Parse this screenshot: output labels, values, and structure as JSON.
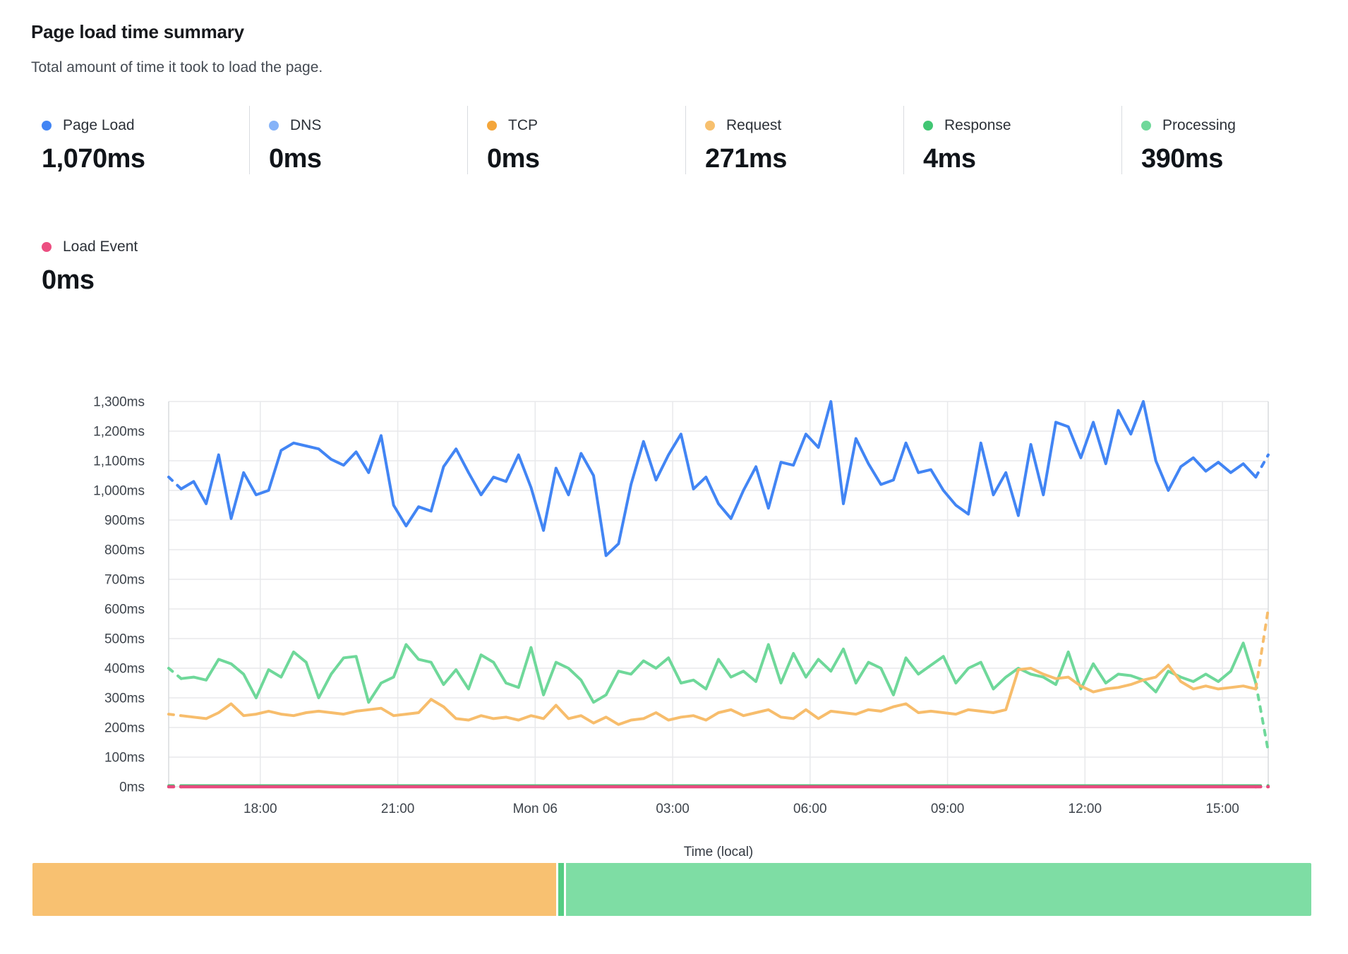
{
  "header": {
    "title": "Page load time summary",
    "subtitle": "Total amount of time it took to load the page."
  },
  "metrics": [
    {
      "id": "page_load",
      "label": "Page Load",
      "value": "1,070ms",
      "color": "#4285f4"
    },
    {
      "id": "dns",
      "label": "DNS",
      "value": "0ms",
      "color": "#86b3f8"
    },
    {
      "id": "tcp",
      "label": "TCP",
      "value": "0ms",
      "color": "#f4a63b"
    },
    {
      "id": "request",
      "label": "Request",
      "value": "271ms",
      "color": "#f7c06e"
    },
    {
      "id": "response",
      "label": "Response",
      "value": "4ms",
      "color": "#41c673"
    },
    {
      "id": "processing",
      "label": "Processing",
      "value": "390ms",
      "color": "#6fd89a"
    }
  ],
  "metrics_secondary": [
    {
      "id": "load_event",
      "label": "Load Event",
      "value": "0ms",
      "color": "#ec4f81"
    }
  ],
  "chart_data": {
    "type": "line",
    "title": "Page load time summary",
    "xlabel": "Time (local)",
    "ylabel": "",
    "ylim": [
      0,
      1300
    ],
    "y_tick_step": 100,
    "y_tick_suffix": "ms",
    "y_tick_labels": [
      "0ms",
      "100ms",
      "200ms",
      "300ms",
      "400ms",
      "500ms",
      "600ms",
      "700ms",
      "800ms",
      "900ms",
      "1,000ms",
      "1,100ms",
      "1,200ms",
      "1,300ms"
    ],
    "x_range_hours": [
      16,
      40
    ],
    "x_ticks": [
      {
        "label": "18:00",
        "hour": 18
      },
      {
        "label": "21:00",
        "hour": 21
      },
      {
        "label": "Mon 06",
        "hour": 24
      },
      {
        "label": "03:00",
        "hour": 27
      },
      {
        "label": "06:00",
        "hour": 30
      },
      {
        "label": "09:00",
        "hour": 33
      },
      {
        "label": "12:00",
        "hour": 36
      },
      {
        "label": "15:00",
        "hour": 39
      }
    ],
    "points_count": 89,
    "grid": true,
    "legend_position": "top",
    "edge_segments": "dashed",
    "series": [
      {
        "name": "DNS",
        "color": "#86b3f8",
        "flat_value": 0
      },
      {
        "name": "TCP",
        "color": "#f4a63b",
        "flat_value": 0
      },
      {
        "name": "Response",
        "color": "#41c673",
        "flat_value": 4
      },
      {
        "name": "Processing",
        "color": "#6fd89a",
        "values": [
          400,
          365,
          370,
          360,
          430,
          415,
          380,
          300,
          395,
          370,
          455,
          420,
          300,
          380,
          435,
          440,
          285,
          350,
          370,
          480,
          430,
          420,
          345,
          395,
          330,
          445,
          420,
          350,
          335,
          470,
          310,
          420,
          400,
          360,
          285,
          310,
          390,
          380,
          425,
          400,
          435,
          350,
          360,
          330,
          430,
          370,
          390,
          355,
          480,
          350,
          450,
          370,
          430,
          390,
          465,
          350,
          420,
          400,
          310,
          435,
          380,
          410,
          440,
          350,
          400,
          420,
          330,
          370,
          400,
          380,
          370,
          345,
          455,
          330,
          415,
          350,
          380,
          375,
          360,
          320,
          390,
          370,
          355,
          380,
          355,
          390,
          485,
          350,
          120
        ]
      },
      {
        "name": "Request",
        "color": "#f7bd6c",
        "values": [
          245,
          240,
          235,
          230,
          250,
          280,
          240,
          245,
          255,
          245,
          240,
          250,
          255,
          250,
          245,
          255,
          260,
          265,
          240,
          245,
          250,
          295,
          270,
          230,
          225,
          240,
          230,
          235,
          225,
          240,
          230,
          275,
          230,
          240,
          215,
          235,
          210,
          225,
          230,
          250,
          225,
          235,
          240,
          225,
          250,
          260,
          240,
          250,
          260,
          235,
          230,
          260,
          230,
          255,
          250,
          245,
          260,
          255,
          270,
          280,
          250,
          255,
          250,
          245,
          260,
          255,
          250,
          260,
          395,
          400,
          380,
          365,
          370,
          340,
          320,
          330,
          335,
          345,
          360,
          370,
          410,
          355,
          330,
          340,
          330,
          335,
          340,
          330,
          600
        ]
      },
      {
        "name": "Page Load",
        "color": "#4285f4",
        "values": [
          1045,
          1005,
          1030,
          955,
          1120,
          905,
          1060,
          985,
          1000,
          1135,
          1160,
          1150,
          1140,
          1105,
          1085,
          1130,
          1060,
          1185,
          950,
          880,
          945,
          930,
          1080,
          1140,
          1060,
          985,
          1045,
          1030,
          1120,
          1010,
          865,
          1075,
          985,
          1125,
          1050,
          780,
          820,
          1020,
          1165,
          1035,
          1120,
          1190,
          1005,
          1045,
          955,
          905,
          1000,
          1080,
          940,
          1095,
          1085,
          1190,
          1145,
          1300,
          955,
          1175,
          1090,
          1020,
          1035,
          1160,
          1060,
          1070,
          1000,
          950,
          920,
          1160,
          985,
          1060,
          915,
          1155,
          985,
          1230,
          1215,
          1110,
          1230,
          1090,
          1270,
          1190,
          1300,
          1100,
          1000,
          1080,
          1110,
          1065,
          1095,
          1060,
          1090,
          1045,
          1120
        ]
      },
      {
        "name": "Load Event",
        "color": "#e84a7f",
        "flat_value": 0
      }
    ]
  },
  "status_bar": {
    "segments": [
      {
        "status": "degraded",
        "color": "#f8c171",
        "weight": 743
      },
      {
        "status": "passing",
        "color": "#55cd83",
        "weight": 8
      },
      {
        "status": "passing",
        "color": "#7edda4",
        "weight": 1058
      }
    ]
  }
}
